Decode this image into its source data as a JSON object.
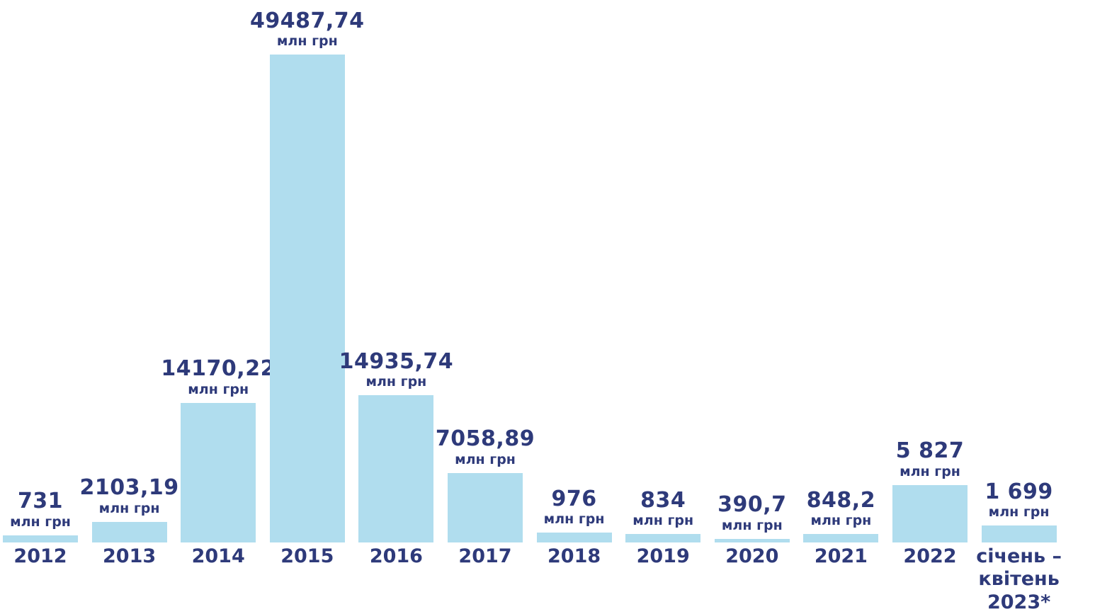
{
  "chart_data": {
    "type": "bar",
    "categories": [
      "2012",
      "2013",
      "2014",
      "2015",
      "2016",
      "2017",
      "2018",
      "2019",
      "2020",
      "2021",
      "2022",
      "січень – квітень 2023*"
    ],
    "values": [
      731,
      2103.19,
      14170.22,
      49487.74,
      14935.74,
      7058.89,
      976,
      834,
      390.7,
      848.2,
      5827,
      1699
    ],
    "value_labels": [
      "731",
      "2103,19",
      "14170,22",
      "49487,74",
      "14935,74",
      "7058,89",
      "976",
      "834",
      "390,7",
      "848,2",
      "5 827",
      "1 699"
    ],
    "unit": "млн грн",
    "color": "#b0ddee"
  }
}
